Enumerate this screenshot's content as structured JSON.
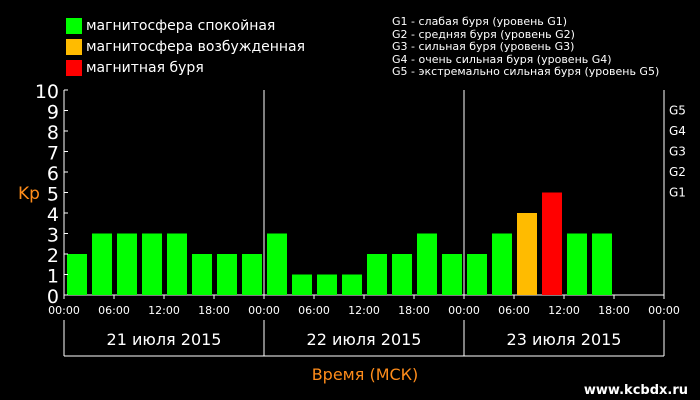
{
  "legend": [
    {
      "label": "магнитосфера спокойная",
      "color": "#00ff00"
    },
    {
      "label": "магнитосфера возбужденная",
      "color": "#ffbb00"
    },
    {
      "label": "магнитная буря",
      "color": "#ff0000"
    }
  ],
  "g_levels": [
    "G1 - слабая буря (уровень G1)",
    "G2 - средняя буря (уровень G2)",
    "G3 - сильная буря (уровень G3)",
    "G4 - очень сильная буря (уровень G4)",
    "G5 - экстремально сильная буря (уровень G5)"
  ],
  "watermark": "www.kcbdx.ru",
  "chart_data": {
    "type": "bar",
    "ylabel": "Kp",
    "xlabel": "Время (МСК)",
    "ylim": [
      0,
      10
    ],
    "y_ticks": [
      "0",
      "1",
      "2",
      "3",
      "4",
      "5",
      "6",
      "7",
      "8",
      "9",
      "10"
    ],
    "right_ticks": [
      {
        "label": "G1",
        "value": 5
      },
      {
        "label": "G2",
        "value": 6
      },
      {
        "label": "G3",
        "value": 7
      },
      {
        "label": "G4",
        "value": 8
      },
      {
        "label": "G5",
        "value": 9
      }
    ],
    "x_tick_labels": [
      "00:00",
      "06:00",
      "12:00",
      "18:00",
      "00:00",
      "06:00",
      "12:00",
      "18:00",
      "00:00",
      "06:00",
      "12:00",
      "18:00",
      "00:00"
    ],
    "days": [
      "21 июля 2015",
      "22 июля 2015",
      "23 июля 2015"
    ],
    "colors": {
      "quiet": "#00ff00",
      "active": "#ffbb00",
      "storm": "#ff0000",
      "axis": "#ffffff",
      "accent": "#ff8c1a"
    },
    "values": [
      2,
      3,
      3,
      3,
      3,
      2,
      2,
      2,
      3,
      1,
      1,
      1,
      2,
      2,
      3,
      2,
      2,
      3,
      4,
      5,
      3,
      3
    ],
    "levels": [
      "quiet",
      "quiet",
      "quiet",
      "quiet",
      "quiet",
      "quiet",
      "quiet",
      "quiet",
      "quiet",
      "quiet",
      "quiet",
      "quiet",
      "quiet",
      "quiet",
      "quiet",
      "quiet",
      "quiet",
      "quiet",
      "active",
      "storm",
      "quiet",
      "quiet"
    ]
  }
}
